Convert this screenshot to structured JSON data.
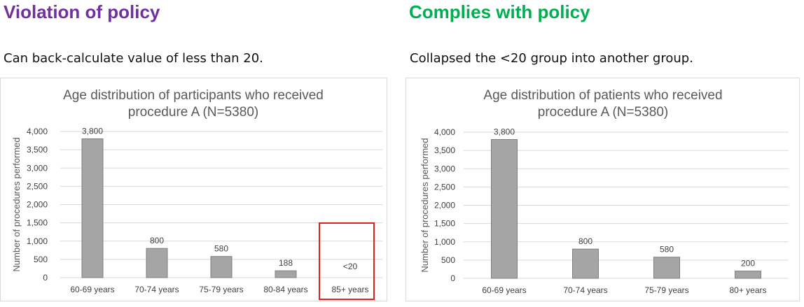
{
  "left": {
    "heading": "Violation of policy",
    "heading_color": "#7030a0",
    "caption": "Can back-calculate value of less than 20."
  },
  "right": {
    "heading": "Complies with policy",
    "heading_color": "#00b050",
    "caption": "Collapsed the <20 group into another group."
  },
  "colors": {
    "bar_fill": "#a5a5a5",
    "bar_stroke": "#7f7f7f",
    "highlight": "#e02020"
  },
  "chart_data": [
    {
      "type": "bar",
      "title": "Age distribution of participants who received procedure A (N=5380)",
      "title_lines": [
        "Age distribution of participants who received",
        "procedure A (N=5380)"
      ],
      "xlabel": "",
      "ylabel": "Number of procedures performed",
      "categories": [
        "60-69 years",
        "70-74 years",
        "75-79 years",
        "80-84 years",
        "85+ years"
      ],
      "values": [
        3800,
        800,
        580,
        188,
        null
      ],
      "data_labels": [
        "3,800",
        "800",
        "580",
        "188",
        "<20"
      ],
      "highlighted_category": "85+ years",
      "ylim": [
        0,
        4000
      ],
      "yticks": [
        0,
        500,
        1000,
        1500,
        2000,
        2500,
        3000,
        3500,
        4000
      ],
      "ytick_labels": [
        "0",
        "500",
        "1,000",
        "1,500",
        "2,000",
        "2,500",
        "3,000",
        "3,500",
        "4,000"
      ],
      "grid": true,
      "legend": "none"
    },
    {
      "type": "bar",
      "title": "Age distribution of patients who received procedure A (N=5380)",
      "title_lines": [
        "Age distribution of patients who received",
        "procedure A (N=5380)"
      ],
      "xlabel": "",
      "ylabel": "Number of procedures performed",
      "categories": [
        "60-69 years",
        "70-74 years",
        "75-79 years",
        "80+ years"
      ],
      "values": [
        3800,
        800,
        580,
        200
      ],
      "data_labels": [
        "3,800",
        "800",
        "580",
        "200"
      ],
      "ylim": [
        0,
        4000
      ],
      "yticks": [
        0,
        500,
        1000,
        1500,
        2000,
        2500,
        3000,
        3500,
        4000
      ],
      "ytick_labels": [
        "0",
        "500",
        "1,000",
        "1,500",
        "2,000",
        "2,500",
        "3,000",
        "3,500",
        "4,000"
      ],
      "grid": true,
      "legend": "none"
    }
  ]
}
